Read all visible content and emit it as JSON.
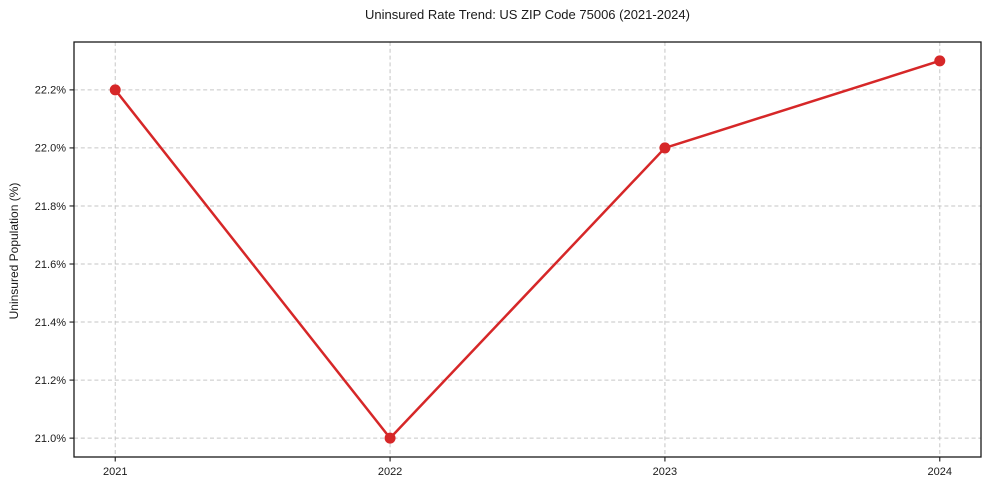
{
  "chart_data": {
    "type": "line",
    "title": "Uninsured Rate Trend: US ZIP Code 75006 (2021-2024)",
    "xlabel": "",
    "ylabel": "Uninsured Population (%)",
    "x": [
      2021,
      2022,
      2023,
      2024
    ],
    "xtick_labels": [
      "2021",
      "2022",
      "2023",
      "2024"
    ],
    "series": [
      {
        "name": "Uninsured rate",
        "values": [
          22.2,
          21.0,
          22.0,
          22.3
        ],
        "color": "#d62728",
        "line_width": 2.5,
        "marker": "circle",
        "marker_radius": 5.5
      }
    ],
    "yticks": [
      21.0,
      21.2,
      21.4,
      21.6,
      21.8,
      22.0,
      22.2
    ],
    "ytick_labels": [
      "21.0%",
      "21.2%",
      "21.4%",
      "21.6%",
      "21.8%",
      "22.0%",
      "22.2%"
    ],
    "xlim": [
      2020.85,
      2024.15
    ],
    "ylim": [
      20.935,
      22.365
    ],
    "grid": true,
    "grid_color": "#c6c6c6",
    "grid_dash": "4 2.8",
    "axis_color": "#1a1a1a",
    "tick_length": 4.5,
    "background": "#ffffff",
    "legend": "none"
  }
}
